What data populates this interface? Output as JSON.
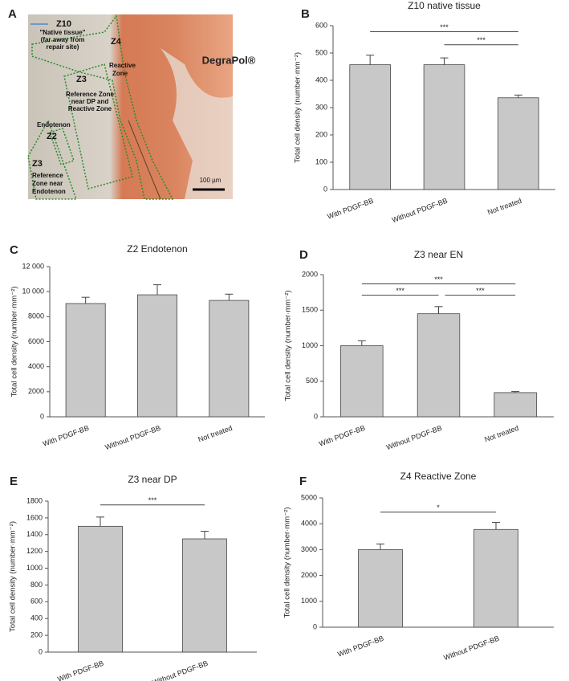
{
  "micrograph": {
    "panel": "A",
    "zones": [
      {
        "label": "Z10",
        "lines": [
          "\"Native tissue\"",
          "(far away from",
          "repair site)"
        ]
      },
      {
        "label": "Z4",
        "lines": [
          "Reactive",
          "Zone"
        ]
      },
      {
        "label": "Z3",
        "lines": [
          "Reference Zone",
          "near DP and",
          "Reactive Zone"
        ]
      },
      {
        "label": "Z2",
        "lines": [
          "Endotenon"
        ]
      },
      {
        "label": "Z3",
        "lines": [
          "Reference",
          "Zone near",
          "Endotenon"
        ]
      }
    ],
    "material": "DegraPol®",
    "scale_bar": "100 µm"
  },
  "chart_data": [
    {
      "type": "bar",
      "panel": "B",
      "title": "Z10 native tissue",
      "y_label": "Total cell density (number·mm⁻²)",
      "categories": [
        "With PDGF-BB",
        "Without PDGF-BB",
        "Not treated"
      ],
      "values": [
        457,
        457,
        336
      ],
      "errors": [
        35,
        25,
        10
      ],
      "color": "#c8c8c8",
      "ylim": [
        0,
        600
      ],
      "yticks": [
        0,
        100,
        200,
        300,
        400,
        500,
        600
      ],
      "significance": [
        {
          "between": [
            "Without PDGF-BB",
            "Not treated"
          ],
          "label": "***"
        },
        {
          "between": [
            "With PDGF-BB",
            "Not treated"
          ],
          "label": "***"
        }
      ]
    },
    {
      "type": "bar",
      "panel": "C",
      "title": "Z2 Endotenon",
      "y_label": "Total cell density (number·mm⁻²)",
      "categories": [
        "With PDGF-BB",
        "Without PDGF-BB",
        "Not treated"
      ],
      "values": [
        9050,
        9750,
        9300
      ],
      "errors": [
        500,
        800,
        500
      ],
      "color": "#c8c8c8",
      "ylim": [
        0,
        12000
      ],
      "yticks": [
        0,
        2000,
        4000,
        6000,
        8000,
        {
          "value": 10000,
          "label": "10 000"
        },
        {
          "value": 12000,
          "label": "12 000"
        }
      ],
      "significance": []
    },
    {
      "type": "bar",
      "panel": "D",
      "title": "Z3 near EN",
      "y_label": "Total cell density (number·mm⁻²)",
      "categories": [
        "With PDGF-BB",
        "Without PDGF-BB",
        "Not treated"
      ],
      "values": [
        1000,
        1450,
        340
      ],
      "errors": [
        70,
        100,
        15
      ],
      "color": "#c8c8c8",
      "ylim": [
        0,
        2000
      ],
      "yticks": [
        0,
        500,
        1000,
        1500,
        2000
      ],
      "significance": [
        {
          "between": [
            "With PDGF-BB",
            "Without PDGF-BB"
          ],
          "label": "***"
        },
        {
          "between": [
            "Without PDGF-BB",
            "Not treated"
          ],
          "label": "***"
        },
        {
          "between": [
            "With PDGF-BB",
            "Not treated"
          ],
          "label": "***"
        }
      ]
    },
    {
      "type": "bar",
      "panel": "E",
      "title": "Z3 near DP",
      "y_label": "Total cell density (number·mm⁻²)",
      "categories": [
        "With PDGF-BB",
        "Without PDGF-BB"
      ],
      "values": [
        1500,
        1350
      ],
      "errors": [
        110,
        90
      ],
      "color": "#c8c8c8",
      "ylim": [
        0,
        1800
      ],
      "yticks": [
        0,
        200,
        400,
        600,
        800,
        1000,
        1200,
        1400,
        1600,
        1800
      ],
      "significance": [
        {
          "between": [
            "With PDGF-BB",
            "Without PDGF-BB"
          ],
          "label": "***"
        }
      ]
    },
    {
      "type": "bar",
      "panel": "F",
      "title": "Z4 Reactive Zone",
      "y_label": "Total cell density (number·mm⁻²)",
      "categories": [
        "With PDGF-BB",
        "Without PDGF-BB"
      ],
      "values": [
        3000,
        3780
      ],
      "errors": [
        220,
        270
      ],
      "color": "#c8c8c8",
      "ylim": [
        0,
        5000
      ],
      "yticks": [
        0,
        1000,
        2000,
        3000,
        4000,
        5000
      ],
      "significance": [
        {
          "between": [
            "With PDGF-BB",
            "Without PDGF-BB"
          ],
          "label": "*"
        }
      ]
    }
  ]
}
